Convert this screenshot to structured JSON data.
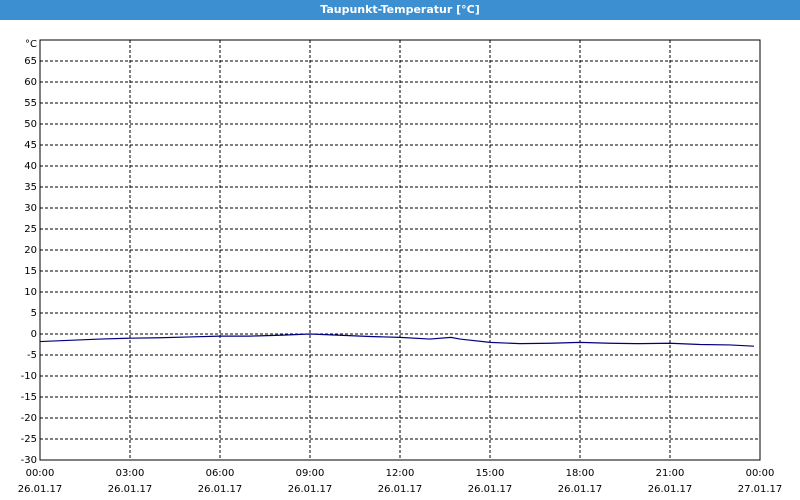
{
  "chart_data": {
    "type": "line",
    "title": "Taupunkt-Temperatur [°C]",
    "y_label": "°C",
    "x": [
      0,
      1,
      2,
      3,
      4,
      5,
      6,
      7,
      8,
      9,
      10,
      11,
      12,
      13,
      13.7,
      14,
      15,
      16,
      17,
      18,
      19,
      20,
      21,
      22,
      23,
      23.8
    ],
    "series": [
      {
        "name": "Taupunkt",
        "color": "#000080",
        "values": [
          -1.8,
          -1.5,
          -1.2,
          -1.0,
          -0.9,
          -0.7,
          -0.5,
          -0.5,
          -0.3,
          0.0,
          -0.3,
          -0.6,
          -0.8,
          -1.2,
          -0.8,
          -1.2,
          -2.0,
          -2.3,
          -2.2,
          -2.0,
          -2.2,
          -2.3,
          -2.2,
          -2.5,
          -2.6,
          -2.9
        ]
      }
    ],
    "xlim": [
      0,
      24
    ],
    "xticks": [
      {
        "value": 0,
        "label": "00:00",
        "date": "26.01.17"
      },
      {
        "value": 3,
        "label": "03:00",
        "date": "26.01.17"
      },
      {
        "value": 6,
        "label": "06:00",
        "date": "26.01.17"
      },
      {
        "value": 9,
        "label": "09:00",
        "date": "26.01.17"
      },
      {
        "value": 12,
        "label": "12:00",
        "date": "26.01.17"
      },
      {
        "value": 15,
        "label": "15:00",
        "date": "26.01.17"
      },
      {
        "value": 18,
        "label": "18:00",
        "date": "26.01.17"
      },
      {
        "value": 21,
        "label": "21:00",
        "date": "26.01.17"
      },
      {
        "value": 24,
        "label": "00:00",
        "date": "27.01.17"
      }
    ],
    "ylim": [
      -30,
      70
    ],
    "yticks": [
      -30,
      -25,
      -20,
      -15,
      -10,
      -5,
      0,
      5,
      10,
      15,
      20,
      25,
      30,
      35,
      40,
      45,
      50,
      55,
      60,
      65
    ],
    "grid": true
  }
}
